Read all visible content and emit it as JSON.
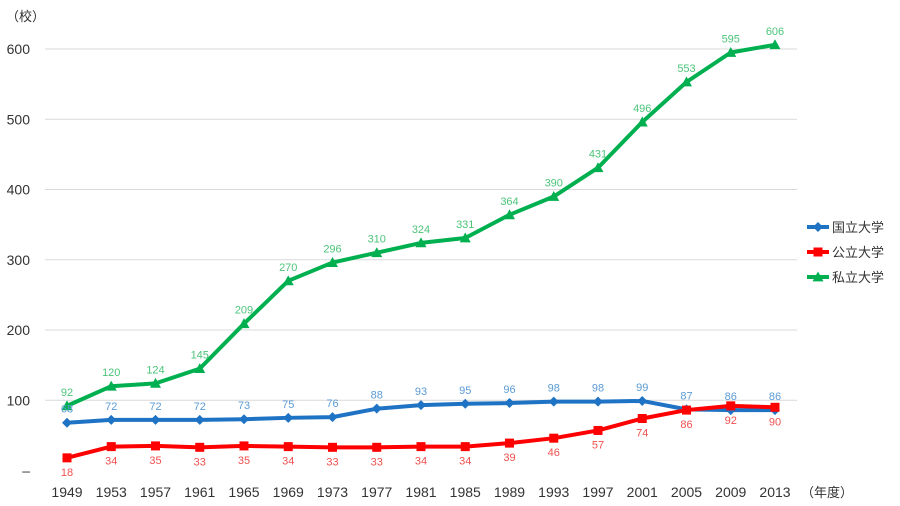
{
  "chart_data": {
    "type": "line",
    "y_unit_label": "（校）",
    "x_unit_label": "（年度）",
    "categories": [
      "1949",
      "1953",
      "1957",
      "1961",
      "1965",
      "1969",
      "1973",
      "1977",
      "1981",
      "1985",
      "1989",
      "1993",
      "1997",
      "2001",
      "2005",
      "2009",
      "2013"
    ],
    "ylim": [
      0,
      650
    ],
    "yticks": [
      {
        "value": 0,
        "label": "–"
      },
      {
        "value": 100,
        "label": "100"
      },
      {
        "value": 200,
        "label": "200"
      },
      {
        "value": 300,
        "label": "300"
      },
      {
        "value": 400,
        "label": "400"
      },
      {
        "value": 500,
        "label": "500"
      },
      {
        "value": 600,
        "label": "600"
      }
    ],
    "grid": true,
    "legend_position": "right",
    "series": [
      {
        "name": "国立大学",
        "color": "#1F73C4",
        "label_color": "#5B9BD5",
        "marker": "diamond",
        "label_position": "above",
        "values": [
          68,
          72,
          72,
          72,
          73,
          75,
          76,
          88,
          93,
          95,
          96,
          98,
          98,
          99,
          87,
          86,
          86
        ]
      },
      {
        "name": "公立大学",
        "color": "#FF0000",
        "label_color": "#F0504F",
        "marker": "square",
        "label_position": "below",
        "values": [
          18,
          34,
          35,
          33,
          35,
          34,
          33,
          33,
          34,
          34,
          39,
          46,
          57,
          74,
          86,
          92,
          90
        ]
      },
      {
        "name": "私立大学",
        "color": "#00B050",
        "label_color": "#4CC47A",
        "marker": "triangle",
        "label_position": "above",
        "values": [
          92,
          120,
          124,
          145,
          209,
          270,
          296,
          310,
          324,
          331,
          364,
          390,
          431,
          496,
          553,
          595,
          606
        ]
      }
    ]
  }
}
